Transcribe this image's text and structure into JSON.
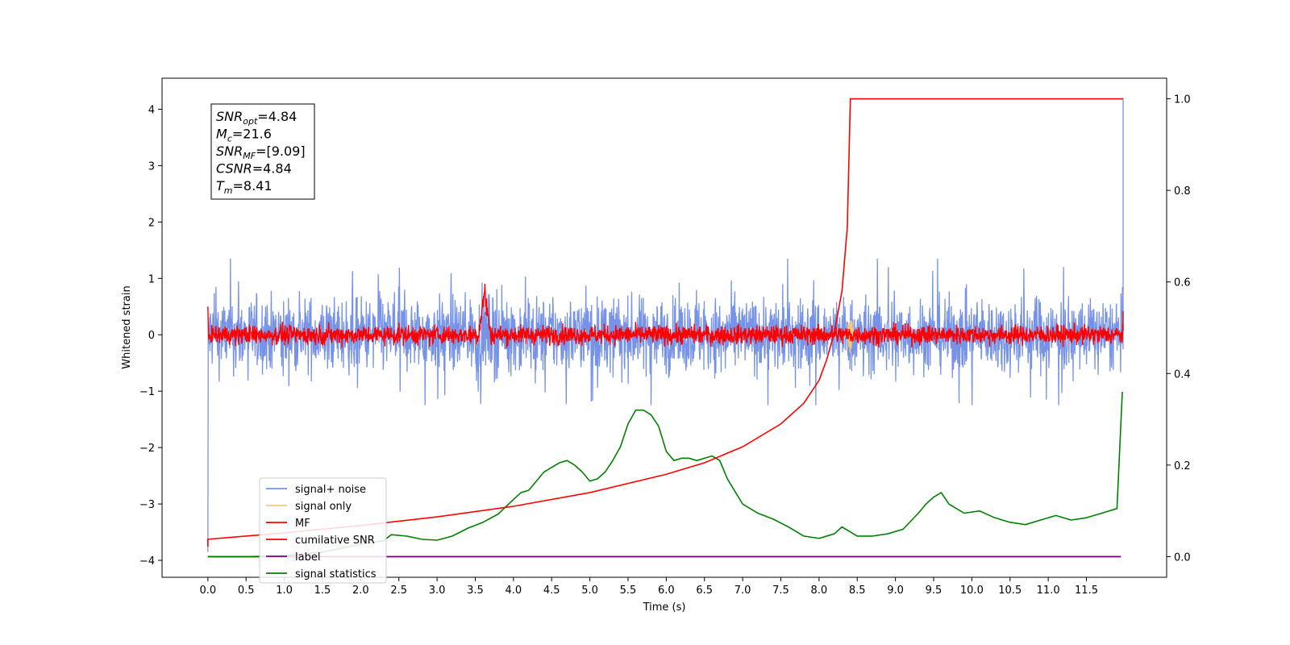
{
  "chart_data": {
    "type": "line",
    "title": "",
    "xlabel": "Time (s)",
    "ylabel": "Whitened strain",
    "xlim": [
      -0.6,
      12.55
    ],
    "ylim": [
      -4.3,
      4.55
    ],
    "y2lim": [
      -0.045,
      1.045
    ],
    "grid": false,
    "legend_position": "lower-left",
    "xticks": [
      "0.0",
      "0.5",
      "1.0",
      "1.5",
      "2.0",
      "2.5",
      "3.0",
      "3.5",
      "4.0",
      "4.5",
      "5.0",
      "5.5",
      "6.0",
      "6.5",
      "7.0",
      "7.5",
      "8.0",
      "8.5",
      "9.0",
      "9.5",
      "10.0",
      "10.5",
      "11.0",
      "11.5"
    ],
    "yticks": [
      "4",
      "3",
      "2",
      "1",
      "0",
      "−1",
      "−2",
      "−3",
      "−4"
    ],
    "y2ticks": [
      "1.0",
      "0.8",
      "0.6",
      "0.4",
      "0.2",
      "0.0"
    ],
    "annotation": {
      "lines": [
        {
          "base": "SNR",
          "sub": "opt",
          "rest": "=4.84"
        },
        {
          "base": "M",
          "sub": "c",
          "rest": "=21.6"
        },
        {
          "base": "SNR",
          "sub": "MF",
          "rest": "=[9.09]"
        },
        {
          "base": "CSNR",
          "sub": "",
          "rest": "=4.84"
        },
        {
          "base": "T",
          "sub": "m",
          "rest": "=8.41"
        }
      ]
    },
    "series": [
      {
        "name": "signal+ noise",
        "color": "#7793e8",
        "axis": "left",
        "noise_band": [
          -1.0,
          1.1
        ],
        "start": 0.0,
        "end": 11.98
      },
      {
        "name": "signal only",
        "color": "#f7c87a",
        "axis": "left",
        "burst_at": 8.41
      },
      {
        "name": "MF",
        "color": "#ff0000",
        "axis": "left",
        "noise_band": [
          -0.25,
          0.3
        ],
        "peak": {
          "t": 3.62,
          "v": 0.95
        }
      },
      {
        "name": "cumilative SNR",
        "color": "#ff0000",
        "axis": "right",
        "x": [
          0.0,
          1.0,
          2.0,
          3.0,
          4.0,
          5.0,
          6.0,
          6.5,
          7.0,
          7.5,
          7.8,
          8.0,
          8.1,
          8.2,
          8.3,
          8.37,
          8.41,
          11.98
        ],
        "y": [
          0.038,
          0.052,
          0.068,
          0.087,
          0.11,
          0.14,
          0.18,
          0.205,
          0.24,
          0.29,
          0.335,
          0.385,
          0.43,
          0.49,
          0.58,
          0.72,
          1.0,
          1.0
        ]
      },
      {
        "name": "label",
        "color": "#800080",
        "axis": "right",
        "x": [
          0.0,
          11.95
        ],
        "y": [
          0.0,
          0.0
        ]
      },
      {
        "name": "signal statistics",
        "color": "#008000",
        "axis": "right",
        "x": [
          0.0,
          0.5,
          1.0,
          1.5,
          2.0,
          2.3,
          2.4,
          2.6,
          2.8,
          3.0,
          3.2,
          3.4,
          3.6,
          3.8,
          4.0,
          4.1,
          4.2,
          4.3,
          4.4,
          4.5,
          4.6,
          4.7,
          4.8,
          4.9,
          5.0,
          5.1,
          5.2,
          5.3,
          5.4,
          5.5,
          5.6,
          5.7,
          5.8,
          5.9,
          6.0,
          6.1,
          6.2,
          6.3,
          6.4,
          6.5,
          6.6,
          6.7,
          6.8,
          7.0,
          7.2,
          7.4,
          7.6,
          7.8,
          8.0,
          8.2,
          8.3,
          8.5,
          8.7,
          8.9,
          9.1,
          9.3,
          9.4,
          9.5,
          9.6,
          9.7,
          9.9,
          10.1,
          10.3,
          10.5,
          10.7,
          10.9,
          11.1,
          11.3,
          11.5,
          11.7,
          11.8,
          11.9,
          11.97
        ],
        "y": [
          0.0,
          0.0,
          0.002,
          0.01,
          0.027,
          0.035,
          0.048,
          0.045,
          0.038,
          0.036,
          0.045,
          0.062,
          0.075,
          0.093,
          0.125,
          0.14,
          0.145,
          0.165,
          0.185,
          0.195,
          0.205,
          0.21,
          0.2,
          0.185,
          0.165,
          0.17,
          0.185,
          0.21,
          0.24,
          0.29,
          0.32,
          0.32,
          0.31,
          0.285,
          0.23,
          0.21,
          0.215,
          0.215,
          0.21,
          0.215,
          0.22,
          0.21,
          0.17,
          0.115,
          0.095,
          0.082,
          0.065,
          0.045,
          0.04,
          0.05,
          0.065,
          0.045,
          0.045,
          0.05,
          0.06,
          0.095,
          0.115,
          0.13,
          0.14,
          0.115,
          0.095,
          0.1,
          0.085,
          0.075,
          0.07,
          0.08,
          0.09,
          0.08,
          0.085,
          0.095,
          0.1,
          0.105,
          0.36
        ]
      }
    ]
  }
}
